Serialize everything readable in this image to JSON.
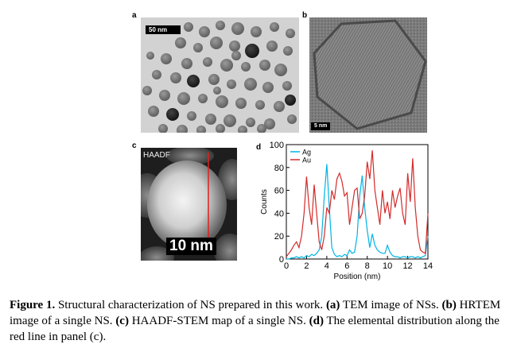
{
  "panels": {
    "a": {
      "label": "a",
      "scale_bar": "50 nm"
    },
    "b": {
      "label": "b",
      "scale_bar": "5 nm"
    },
    "c": {
      "label": "c",
      "mode": "HAADF",
      "scale_bar": "10 nm"
    },
    "d": {
      "label": "d"
    }
  },
  "chart_data": {
    "type": "line",
    "xlabel": "Position (nm)",
    "ylabel": "Counts",
    "xlim": [
      0,
      14
    ],
    "ylim": [
      0,
      100
    ],
    "xticks": [
      0,
      2,
      4,
      6,
      8,
      10,
      12,
      14
    ],
    "yticks": [
      0,
      20,
      40,
      60,
      80,
      100
    ],
    "legend_position": "top-left",
    "colors": {
      "Ag": "#00b4e6",
      "Au": "#d42a2a"
    },
    "x": [
      0,
      0.25,
      0.5,
      0.75,
      1,
      1.25,
      1.5,
      1.75,
      2,
      2.25,
      2.5,
      2.75,
      3,
      3.25,
      3.5,
      3.75,
      4,
      4.25,
      4.5,
      4.75,
      5,
      5.25,
      5.5,
      5.75,
      6,
      6.25,
      6.5,
      6.75,
      7,
      7.25,
      7.5,
      7.75,
      8,
      8.25,
      8.5,
      8.75,
      9,
      9.25,
      9.5,
      9.75,
      10,
      10.25,
      10.5,
      10.75,
      11,
      11.25,
      11.5,
      11.75,
      12,
      12.25,
      12.5,
      12.75,
      13,
      13.25,
      13.5,
      13.75,
      14
    ],
    "series": [
      {
        "name": "Ag",
        "values": [
          0,
          0,
          1,
          1,
          2,
          1,
          2,
          1,
          3,
          2,
          4,
          3,
          5,
          8,
          20,
          55,
          83,
          45,
          10,
          4,
          2,
          3,
          2,
          4,
          3,
          8,
          5,
          6,
          20,
          55,
          73,
          45,
          25,
          10,
          22,
          12,
          8,
          6,
          5,
          5,
          12,
          6,
          3,
          2,
          2,
          1,
          2,
          2,
          1,
          2,
          2,
          1,
          2,
          1,
          2,
          3,
          20
        ]
      },
      {
        "name": "Au",
        "values": [
          2,
          5,
          8,
          12,
          15,
          10,
          20,
          40,
          72,
          45,
          30,
          65,
          40,
          15,
          8,
          20,
          45,
          40,
          60,
          52,
          70,
          75,
          68,
          55,
          58,
          30,
          45,
          60,
          62,
          35,
          40,
          55,
          85,
          70,
          95,
          60,
          45,
          30,
          60,
          40,
          50,
          35,
          60,
          45,
          55,
          62,
          40,
          30,
          75,
          50,
          88,
          45,
          20,
          8,
          6,
          5,
          40
        ]
      }
    ]
  },
  "caption": {
    "fig_label": "Figure 1.",
    "text_intro": " Structural characterization of NS prepared in this work. ",
    "a_label": "(a)",
    "a_text": " TEM image of NSs. ",
    "b_label": "(b)",
    "b_text": " HRTEM image of a single NS. ",
    "c_label": "(c)",
    "c_text": " HAADF-STEM map of a single NS. ",
    "d_label": "(d)",
    "d_text": " The elemental distribution along the red line in panel (c)."
  }
}
